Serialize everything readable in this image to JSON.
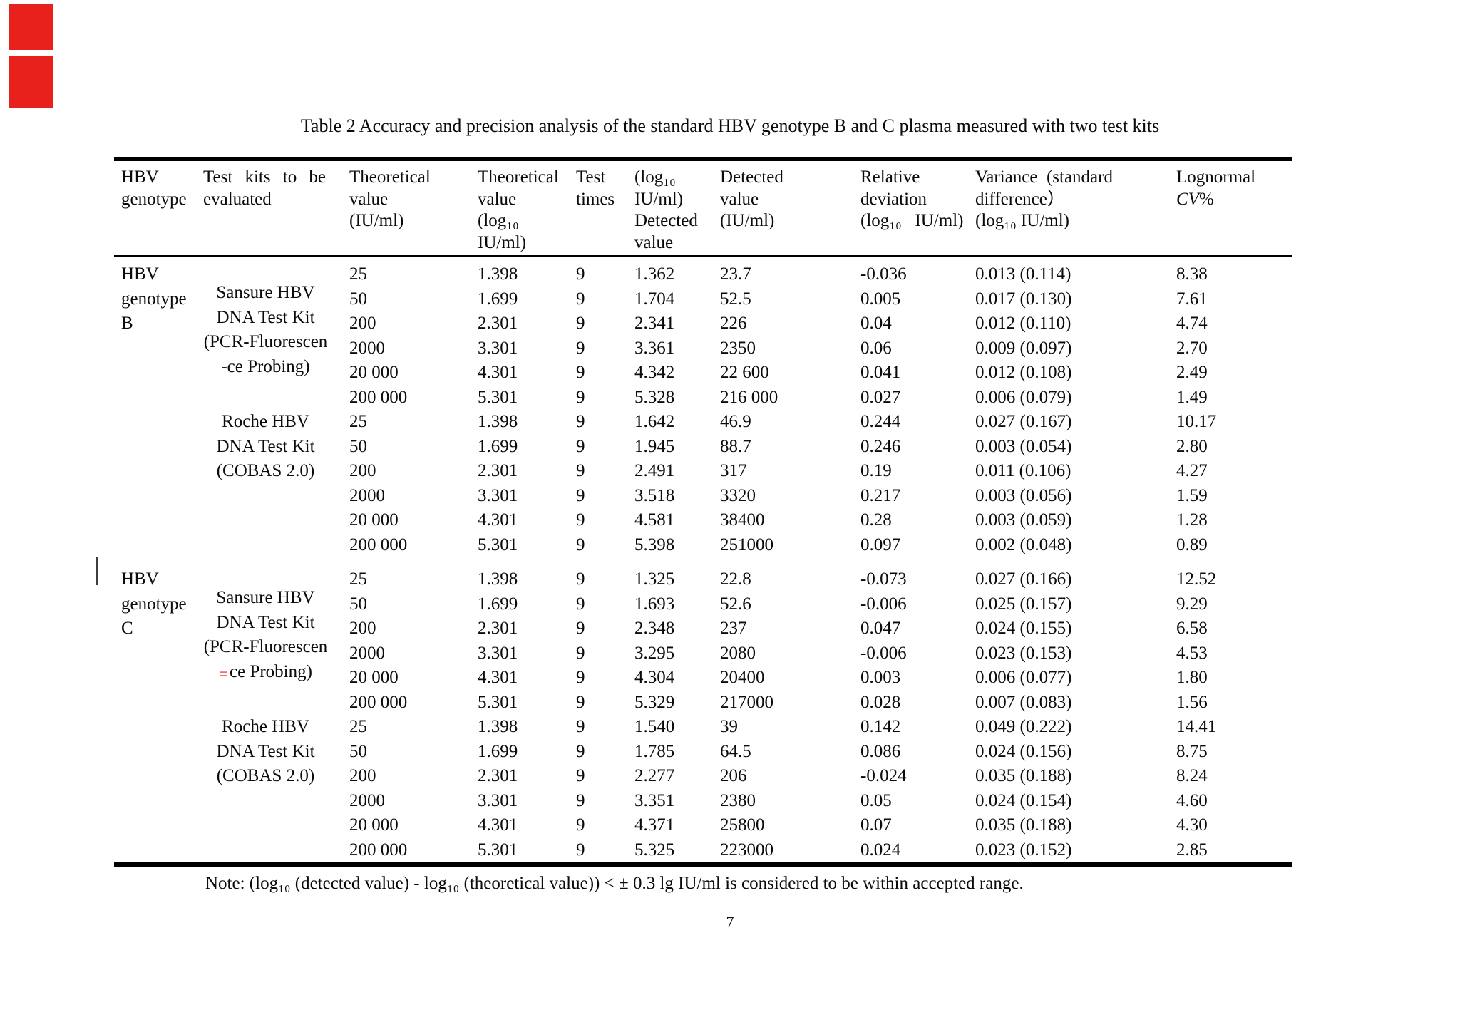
{
  "doc": {
    "title": "Table 2 Accuracy and precision analysis of the standard HBV genotype B and C plasma measured with two test kits",
    "note": "Note: (log₁₀ (detected value) - log₁₀ (theoretical value)) < ± 0.3 lg IU/ml is considered to be within accepted range.",
    "page_number": "7"
  },
  "colors": {
    "revision_red": "#e8211d",
    "change_bar_gray": "#3d3d3d"
  },
  "revision_marks": {
    "corner_bars": [
      "red-block-top",
      "red-block-bottom"
    ],
    "change_bar": "vertical line left of HBV genotype C",
    "deleted_hyphen": "="
  },
  "table": {
    "header": {
      "genotype": [
        "HBV",
        "genotype"
      ],
      "kit_line1_words": [
        "Test",
        "kits",
        "to",
        "be"
      ],
      "kit_line2": "evaluated",
      "theoretical_iu": [
        "Theoretical",
        "value",
        "(IU/ml)"
      ],
      "theoretical_log": [
        "Theoretical",
        "value",
        "(log₁₀",
        "IU/ml)"
      ],
      "times": [
        "Test",
        "times"
      ],
      "detected_log": [
        "(log₁₀",
        "IU/ml)",
        "Detected",
        "value"
      ],
      "detected_iu": [
        "Detected",
        "value",
        "(IU/ml)"
      ],
      "relative_deviation": [
        "Relative",
        "deviation",
        "(log₁₀   IU/ml)"
      ],
      "variance": [
        "Variance  (standard",
        "difference）",
        "(log₁₀ IU/ml)"
      ],
      "lognormal_line1": "Lognormal",
      "cv_italic": "CV",
      "cv_rest": "%"
    },
    "value_columns": [
      "theoretical-value-iu",
      "theoretical-value-log10",
      "test-times",
      "detected-value-log10",
      "detected-value-iu",
      "relative-deviation",
      "variance-standard-difference",
      "lognormal-cv-percent"
    ],
    "groups": [
      {
        "genotype_lines": [
          "HBV",
          "genotype",
          "B"
        ],
        "change_bar": false,
        "kits": [
          {
            "name_lines": [
              "Sansure HBV",
              "DNA Test Kit",
              "(PCR-Fluorescen",
              "-ce Probing)"
            ],
            "pad_top": true,
            "red_mark": null,
            "rows": [
              [
                "25",
                "1.398",
                "9",
                "1.362",
                "23.7",
                "-0.036",
                "0.013 (0.114)",
                "8.38"
              ],
              [
                "50",
                "1.699",
                "9",
                "1.704",
                "52.5",
                "0.005",
                "0.017 (0.130)",
                "7.61"
              ],
              [
                "200",
                "2.301",
                "9",
                "2.341",
                "226",
                "0.04",
                "0.012 (0.110)",
                "4.74"
              ],
              [
                "2000",
                "3.301",
                "9",
                "3.361",
                "2350",
                "0.06",
                "0.009 (0.097)",
                "2.70"
              ],
              [
                "20 000",
                "4.301",
                "9",
                "4.342",
                "22 600",
                "0.041",
                "0.012 (0.108)",
                "2.49"
              ],
              [
                "200 000",
                "5.301",
                "9",
                "5.328",
                "216 000",
                "0.027",
                "0.006 (0.079)",
                "1.49"
              ]
            ]
          },
          {
            "name_lines": [
              "Roche HBV",
              "DNA Test Kit",
              "(COBAS 2.0)"
            ],
            "pad_top": false,
            "red_mark": null,
            "rows": [
              [
                "25",
                "1.398",
                "9",
                "1.642",
                "46.9",
                "0.244",
                "0.027 (0.167)",
                "10.17"
              ],
              [
                "50",
                "1.699",
                "9",
                "1.945",
                "88.7",
                "0.246",
                "0.003 (0.054)",
                "2.80"
              ],
              [
                "200",
                "2.301",
                "9",
                "2.491",
                "317",
                "0.19",
                "0.011 (0.106)",
                "4.27"
              ],
              [
                "2000",
                "3.301",
                "9",
                "3.518",
                "3320",
                "0.217",
                "0.003 (0.056)",
                "1.59"
              ],
              [
                "20 000",
                "4.301",
                "9",
                "4.581",
                "38400",
                "0.28",
                "0.003 (0.059)",
                "1.28"
              ],
              [
                "200 000",
                "5.301",
                "9",
                "5.398",
                "251000",
                "0.097",
                "0.002 (0.048)",
                "0.89"
              ]
            ]
          }
        ]
      },
      {
        "genotype_lines": [
          "HBV",
          "genotype",
          "C"
        ],
        "change_bar": true,
        "kits": [
          {
            "name_lines": [
              "Sansure HBV",
              "DNA Test Kit",
              "(PCR-Fluorescen",
              "ce Probing)"
            ],
            "pad_top": true,
            "red_mark": {
              "line": 3,
              "char": "="
            },
            "rows": [
              [
                "25",
                "1.398",
                "9",
                "1.325",
                "22.8",
                "-0.073",
                "0.027 (0.166)",
                "12.52"
              ],
              [
                "50",
                "1.699",
                "9",
                "1.693",
                "52.6",
                "-0.006",
                "0.025 (0.157)",
                "9.29"
              ],
              [
                "200",
                "2.301",
                "9",
                "2.348",
                "237",
                "0.047",
                "0.024 (0.155)",
                "6.58"
              ],
              [
                "2000",
                "3.301",
                "9",
                "3.295",
                "2080",
                "-0.006",
                "0.023 (0.153)",
                "4.53"
              ],
              [
                "20 000",
                "4.301",
                "9",
                "4.304",
                "20400",
                "0.003",
                "0.006 (0.077)",
                "1.80"
              ],
              [
                "200 000",
                "5.301",
                "9",
                "5.329",
                "217000",
                "0.028",
                "0.007 (0.083)",
                "1.56"
              ]
            ]
          },
          {
            "name_lines": [
              "Roche HBV",
              "DNA Test Kit",
              "(COBAS 2.0)"
            ],
            "pad_top": false,
            "red_mark": null,
            "rows": [
              [
                "25",
                "1.398",
                "9",
                "1.540",
                "39",
                "0.142",
                "0.049 (0.222)",
                "14.41"
              ],
              [
                "50",
                "1.699",
                "9",
                "1.785",
                "64.5",
                "0.086",
                "0.024 (0.156)",
                "8.75"
              ],
              [
                "200",
                "2.301",
                "9",
                "2.277",
                "206",
                "-0.024",
                "0.035 (0.188)",
                "8.24"
              ],
              [
                "2000",
                "3.301",
                "9",
                "3.351",
                "2380",
                "0.05",
                "0.024 (0.154)",
                "4.60"
              ],
              [
                "20 000",
                "4.301",
                "9",
                "4.371",
                "25800",
                "0.07",
                "0.035 (0.188)",
                "4.30"
              ],
              [
                "200 000",
                "5.301",
                "9",
                "5.325",
                "223000",
                "0.024",
                "0.023 (0.152)",
                "2.85"
              ]
            ]
          }
        ]
      }
    ]
  }
}
